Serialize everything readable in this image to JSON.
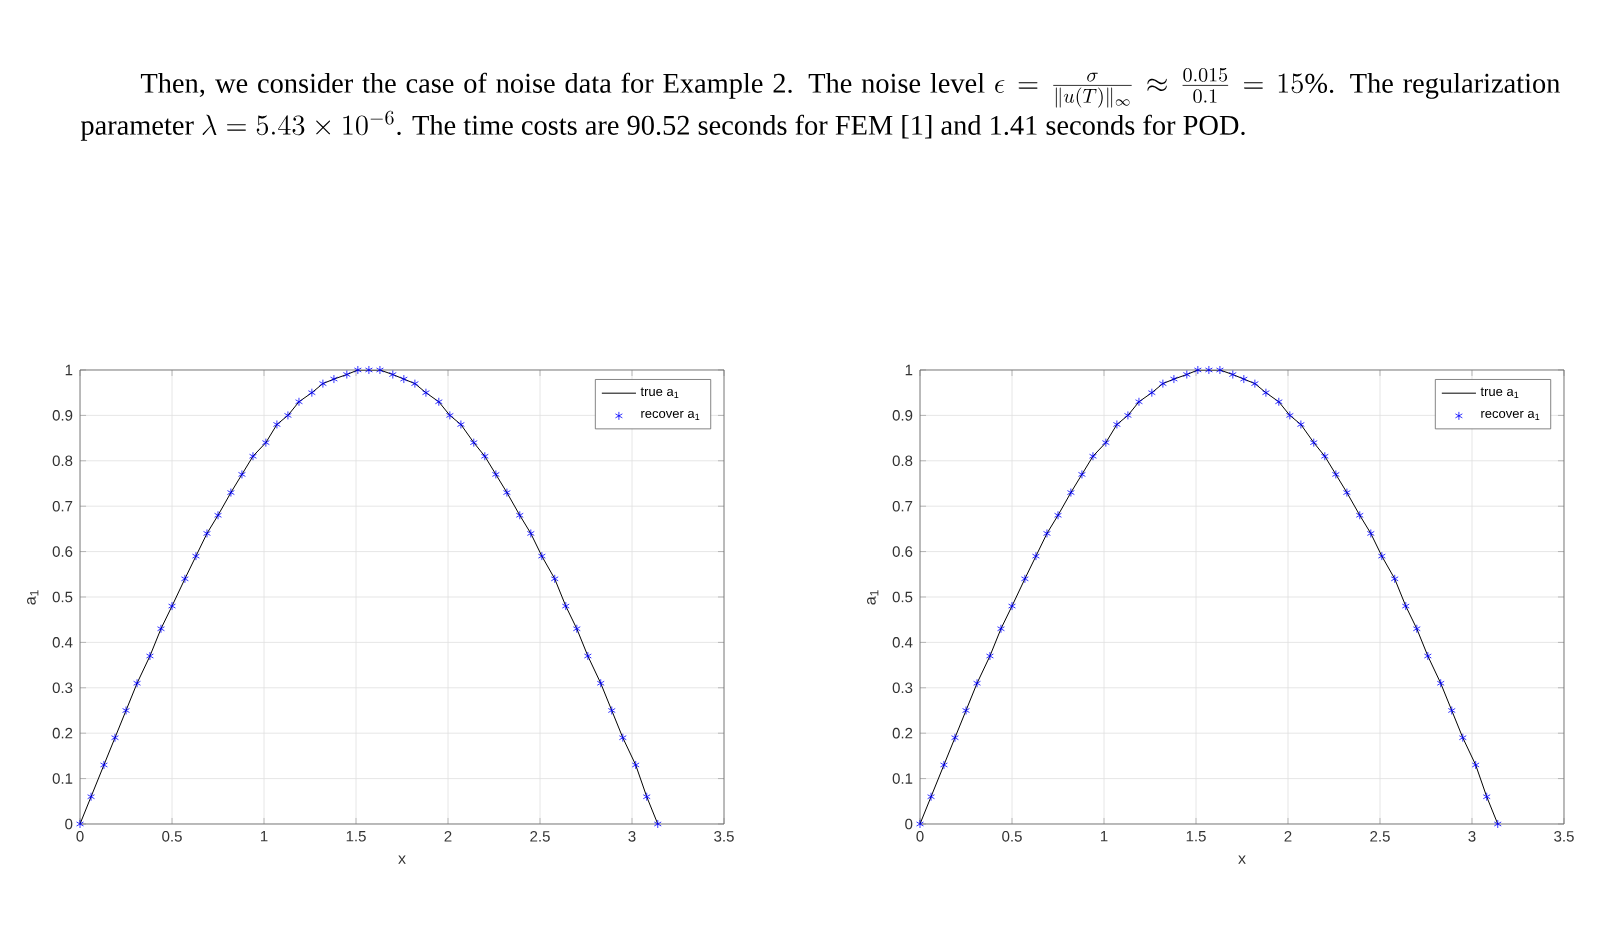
{
  "chart_data": [
    {
      "type": "other",
      "annotations": [
        "Then, we consider the case of noise data for Example 2. The noise level",
        "\\epsilon = \\frac{\\sigma}{\\|u(T)\\|_{\\infty}} \\approx \\frac{0.015}{0.1} = 15\\%",
        ". The regularization parameter",
        "\\lambda = 5.43 \\times 10^{-6}",
        ". The time costs are 90.52 seconds for FEM [1] and 1.41 seconds for POD."
      ]
    },
    {
      "type": "line",
      "xlabel": "x",
      "ylabel": "a$_{1}$",
      "x": [
        0,
        0.06,
        0.13,
        0.19,
        0.25,
        0.31,
        0.38,
        0.44,
        0.5,
        0.57,
        0.63,
        0.69,
        0.75,
        0.82,
        0.88,
        0.94,
        1.01,
        1.07,
        1.13,
        1.19,
        1.26,
        1.32,
        1.38,
        1.45,
        1.51,
        1.57,
        1.63,
        1.7,
        1.76,
        1.82,
        1.88,
        1.95,
        2.01,
        2.07,
        2.14,
        2.2,
        2.26,
        2.32,
        2.39,
        2.45,
        2.51,
        2.58,
        2.64,
        2.7,
        2.76,
        2.83,
        2.89,
        2.95,
        3.02,
        3.08,
        3.14
      ],
      "series": [
        {
          "name": "true a$_{1}$",
          "color": "#000000",
          "values": [
            0,
            0.06,
            0.13,
            0.19,
            0.25,
            0.31,
            0.37,
            0.43,
            0.48,
            0.54,
            0.59,
            0.64,
            0.68,
            0.73,
            0.77,
            0.81,
            0.84,
            0.88,
            0.9,
            0.93,
            0.95,
            0.97,
            0.98,
            0.99,
            1.0,
            1.0,
            1.0,
            0.99,
            0.98,
            0.97,
            0.95,
            0.93,
            0.9,
            0.88,
            0.84,
            0.81,
            0.77,
            0.73,
            0.68,
            0.64,
            0.59,
            0.54,
            0.48,
            0.43,
            0.37,
            0.31,
            0.25,
            0.19,
            0.13,
            0.06,
            0
          ]
        },
        {
          "name": "recover a$_{1}$",
          "type": "scatter",
          "marker": "cross",
          "color": "#0000ff",
          "values": [
            0,
            0.06,
            0.13,
            0.19,
            0.25,
            0.31,
            0.37,
            0.43,
            0.48,
            0.54,
            0.59,
            0.64,
            0.68,
            0.73,
            0.77,
            0.81,
            0.84,
            0.88,
            0.9,
            0.93,
            0.95,
            0.97,
            0.98,
            0.99,
            1.0,
            1.0,
            1.0,
            0.99,
            0.98,
            0.97,
            0.95,
            0.93,
            0.9,
            0.88,
            0.84,
            0.81,
            0.77,
            0.73,
            0.68,
            0.64,
            0.59,
            0.54,
            0.48,
            0.43,
            0.37,
            0.31,
            0.25,
            0.19,
            0.13,
            0.06,
            0
          ]
        }
      ],
      "xlim": [
        0,
        3.5
      ],
      "xticks": [
        0,
        0.5,
        1,
        1.5,
        2,
        2.5,
        3,
        3.5
      ],
      "ylim": [
        0,
        1
      ],
      "yticks": [
        0,
        0.1,
        0.2,
        0.3,
        0.4,
        0.5,
        0.6,
        0.7,
        0.8,
        0.9,
        1
      ],
      "grid": true,
      "legend": "top right"
    },
    {
      "type": "line",
      "xlabel": "x",
      "ylabel": "a$_{1}$",
      "x": [
        0,
        0.06,
        0.13,
        0.19,
        0.25,
        0.31,
        0.38,
        0.44,
        0.5,
        0.57,
        0.63,
        0.69,
        0.75,
        0.82,
        0.88,
        0.94,
        1.01,
        1.07,
        1.13,
        1.19,
        1.26,
        1.32,
        1.38,
        1.45,
        1.51,
        1.57,
        1.63,
        1.7,
        1.76,
        1.82,
        1.88,
        1.95,
        2.01,
        2.07,
        2.14,
        2.2,
        2.26,
        2.32,
        2.39,
        2.45,
        2.51,
        2.58,
        2.64,
        2.7,
        2.76,
        2.83,
        2.89,
        2.95,
        3.02,
        3.08,
        3.14
      ],
      "series": [
        {
          "name": "true a$_{1}$",
          "color": "#000000",
          "values": [
            0,
            0.06,
            0.13,
            0.19,
            0.25,
            0.31,
            0.37,
            0.43,
            0.48,
            0.54,
            0.59,
            0.64,
            0.68,
            0.73,
            0.77,
            0.81,
            0.84,
            0.88,
            0.9,
            0.93,
            0.95,
            0.97,
            0.98,
            0.99,
            1.0,
            1.0,
            1.0,
            0.99,
            0.98,
            0.97,
            0.95,
            0.93,
            0.9,
            0.88,
            0.84,
            0.81,
            0.77,
            0.73,
            0.68,
            0.64,
            0.59,
            0.54,
            0.48,
            0.43,
            0.37,
            0.31,
            0.25,
            0.19,
            0.13,
            0.06,
            0
          ]
        },
        {
          "name": "recover a$_{1}$",
          "type": "scatter",
          "marker": "cross",
          "color": "#0000ff",
          "values": [
            0,
            0.06,
            0.13,
            0.19,
            0.25,
            0.31,
            0.37,
            0.43,
            0.48,
            0.54,
            0.59,
            0.64,
            0.68,
            0.73,
            0.77,
            0.81,
            0.84,
            0.88,
            0.9,
            0.93,
            0.95,
            0.97,
            0.98,
            0.99,
            1.0,
            1.0,
            1.0,
            0.99,
            0.98,
            0.97,
            0.95,
            0.93,
            0.9,
            0.88,
            0.84,
            0.81,
            0.77,
            0.73,
            0.68,
            0.64,
            0.59,
            0.54,
            0.48,
            0.43,
            0.37,
            0.31,
            0.25,
            0.19,
            0.13,
            0.06,
            0
          ]
        }
      ],
      "xlim": [
        0,
        3.5
      ],
      "xticks": [
        0,
        0.5,
        1,
        1.5,
        2,
        2.5,
        3,
        3.5
      ],
      "ylim": [
        0,
        1
      ],
      "yticks": [
        0,
        0.1,
        0.2,
        0.3,
        0.4,
        0.5,
        0.6,
        0.7,
        0.8,
        0.9,
        1
      ],
      "grid": true,
      "legend": "top right"
    }
  ]
}
